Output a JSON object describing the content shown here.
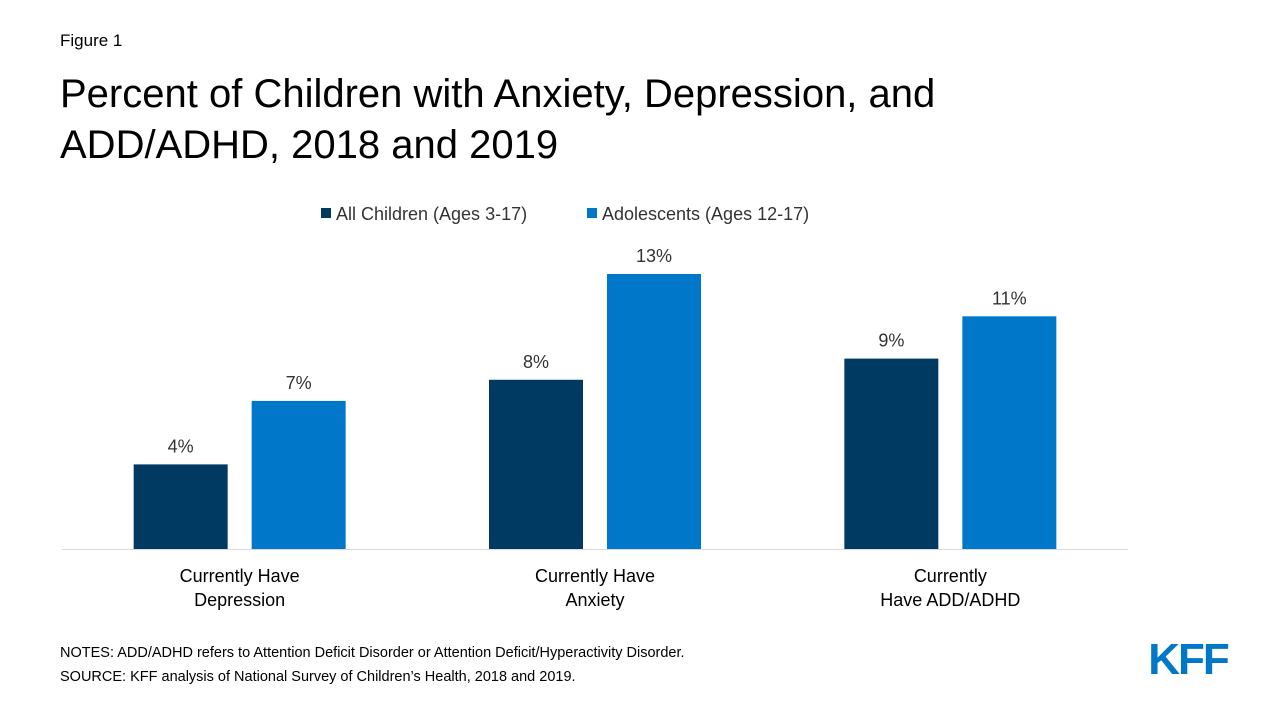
{
  "chart_data": {
    "type": "bar",
    "figure_label": "Figure 1",
    "title": "Percent of Children with Anxiety, Depression, and\nADD/ADHD, 2018 and 2019",
    "categories": [
      "Currently Have\nDepression",
      "Currently Have\nAnxiety",
      "Currently\nHave ADD/ADHD"
    ],
    "series": [
      {
        "name": "All Children (Ages 3-17)",
        "color": "#003a63",
        "values": [
          4,
          8,
          9
        ],
        "value_labels": [
          "4%",
          "8%",
          "9%"
        ]
      },
      {
        "name": "Adolescents (Ages 12-17)",
        "color": "#0077c8",
        "values": [
          7,
          13,
          11
        ],
        "value_labels": [
          "7%",
          "13%",
          "11%"
        ]
      }
    ],
    "legend": "top",
    "notes": "NOTES: ADD/ADHD refers to Attention Deficit Disorder or Attention Deficit/Hyperactivity Disorder.",
    "source": "SOURCE: KFF analysis of National Survey of Children’s Health, 2018 and 2019.",
    "logo": "KFF"
  }
}
